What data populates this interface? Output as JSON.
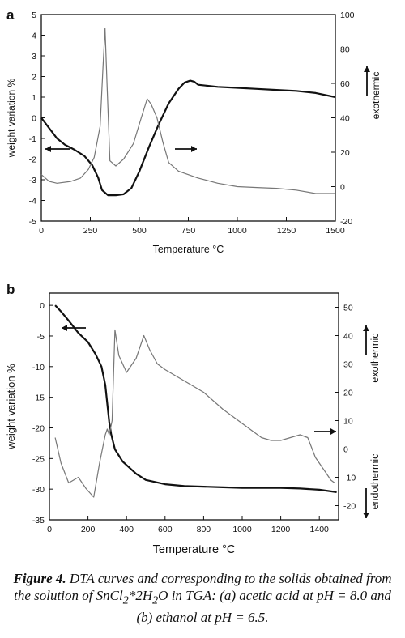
{
  "chart_data": [
    {
      "panel": "a",
      "type": "line",
      "xlabel": "Temperature °C",
      "ylabel": "weight variation %",
      "y2label": "exothermic",
      "xlim": [
        0,
        1500
      ],
      "ylim": [
        -5,
        5
      ],
      "y2lim": [
        -20,
        100
      ],
      "xticks": [
        0,
        250,
        500,
        750,
        1000,
        1250,
        1500
      ],
      "yticks": [
        -5,
        -4,
        -3,
        -2,
        -1,
        0,
        1,
        2,
        3,
        4,
        5
      ],
      "y2ticks": [
        -20,
        0,
        20,
        40,
        60,
        80,
        100
      ],
      "grid": false,
      "series": [
        {
          "role": "weight",
          "axis": "left",
          "color": "#111111",
          "x": [
            0,
            40,
            80,
            120,
            170,
            220,
            260,
            290,
            310,
            340,
            380,
            420,
            460,
            500,
            550,
            600,
            650,
            700,
            730,
            760,
            780,
            800,
            900,
            1000,
            1100,
            1200,
            1300,
            1400,
            1500
          ],
          "y": [
            0.0,
            -0.5,
            -1.0,
            -1.3,
            -1.55,
            -1.85,
            -2.3,
            -2.9,
            -3.5,
            -3.75,
            -3.75,
            -3.7,
            -3.4,
            -2.6,
            -1.4,
            -0.3,
            0.7,
            1.4,
            1.7,
            1.8,
            1.75,
            1.6,
            1.5,
            1.45,
            1.4,
            1.35,
            1.3,
            1.2,
            1.0
          ]
        },
        {
          "role": "dta",
          "axis": "right",
          "color": "#777777",
          "x": [
            0,
            40,
            80,
            150,
            200,
            240,
            270,
            300,
            315,
            325,
            335,
            350,
            380,
            420,
            470,
            510,
            540,
            560,
            590,
            620,
            650,
            700,
            800,
            900,
            1000,
            1100,
            1200,
            1300,
            1400,
            1500
          ],
          "y": [
            7,
            3,
            2,
            3,
            5,
            10,
            17,
            35,
            70,
            92,
            60,
            15,
            12,
            16,
            25,
            40,
            51,
            48,
            40,
            26,
            14,
            9,
            5,
            2,
            0,
            -0.5,
            -1,
            -2,
            -4,
            -4
          ]
        }
      ]
    },
    {
      "panel": "b",
      "type": "line",
      "xlabel": "Temperature °C",
      "ylabel": "weight variation %",
      "y2label_top": "exothermic",
      "y2label_bottom": "endothermic",
      "xlim": [
        0,
        1500
      ],
      "ylim": [
        -35,
        2
      ],
      "y2lim": [
        -25,
        55
      ],
      "xticks": [
        0,
        200,
        400,
        600,
        800,
        1000,
        1200,
        1400
      ],
      "yticks": [
        -35,
        -30,
        -25,
        -20,
        -15,
        -10,
        -5,
        0
      ],
      "y2ticks": [
        -20,
        -10,
        0,
        10,
        20,
        30,
        40,
        50
      ],
      "grid": false,
      "series": [
        {
          "role": "weight",
          "axis": "left",
          "color": "#111111",
          "x": [
            30,
            60,
            100,
            150,
            200,
            240,
            270,
            290,
            300,
            310,
            320,
            340,
            380,
            450,
            500,
            600,
            700,
            800,
            900,
            1000,
            1100,
            1200,
            1300,
            1400,
            1490
          ],
          "y": [
            0,
            -1,
            -2.5,
            -4.5,
            -6,
            -8,
            -10,
            -13,
            -16,
            -19,
            -21,
            -23.5,
            -25.5,
            -27.5,
            -28.5,
            -29.2,
            -29.5,
            -29.6,
            -29.7,
            -29.8,
            -29.8,
            -29.8,
            -29.9,
            -30.1,
            -30.5
          ]
        },
        {
          "role": "dta",
          "axis": "right",
          "color": "#777777",
          "x": [
            30,
            60,
            100,
            150,
            190,
            230,
            260,
            290,
            300,
            310,
            325,
            340,
            360,
            400,
            450,
            490,
            520,
            560,
            600,
            700,
            800,
            900,
            1000,
            1100,
            1150,
            1200,
            1250,
            1300,
            1340,
            1380,
            1420,
            1460,
            1480
          ],
          "y": [
            4,
            -5,
            -12,
            -10,
            -14,
            -17,
            -5,
            5,
            7,
            5,
            10,
            42,
            33,
            27,
            32,
            40,
            35,
            30,
            28,
            24,
            20,
            14,
            9,
            4,
            3,
            3,
            4,
            5,
            4,
            -3,
            -7,
            -11,
            -12
          ]
        }
      ]
    }
  ],
  "labels": {
    "panel_a": "a",
    "panel_b": "b",
    "tick_a_y": [
      "5",
      "4",
      "3",
      "2",
      "1",
      "0",
      "-1",
      "-2",
      "-3",
      "-4",
      "-5"
    ],
    "tick_a_y2": [
      "100",
      "80",
      "60",
      "40",
      "20",
      "0",
      "-20"
    ],
    "tick_a_x": [
      "0",
      "250",
      "500",
      "750",
      "1000",
      "1250",
      "1500"
    ],
    "tick_b_y": [
      "0",
      "-5",
      "-10",
      "-15",
      "-20",
      "-25",
      "-30",
      "-35"
    ],
    "tick_b_y2": [
      "50",
      "40",
      "30",
      "20",
      "10",
      "0",
      "-10",
      "-20"
    ],
    "tick_b_x": [
      "0",
      "200",
      "400",
      "600",
      "800",
      "1000",
      "1200",
      "1400"
    ]
  },
  "caption": {
    "label": "Figure 4.",
    "text_1": " DTA curves and corresponding to the solids obtained from the solution of SnCl",
    "sub_1": "2",
    "text_2": "*2H",
    "sub_2": "2",
    "text_3": "O in TGA: (a) acetic acid at pH = 8.0 and (b) ethanol at pH = 6.5."
  }
}
